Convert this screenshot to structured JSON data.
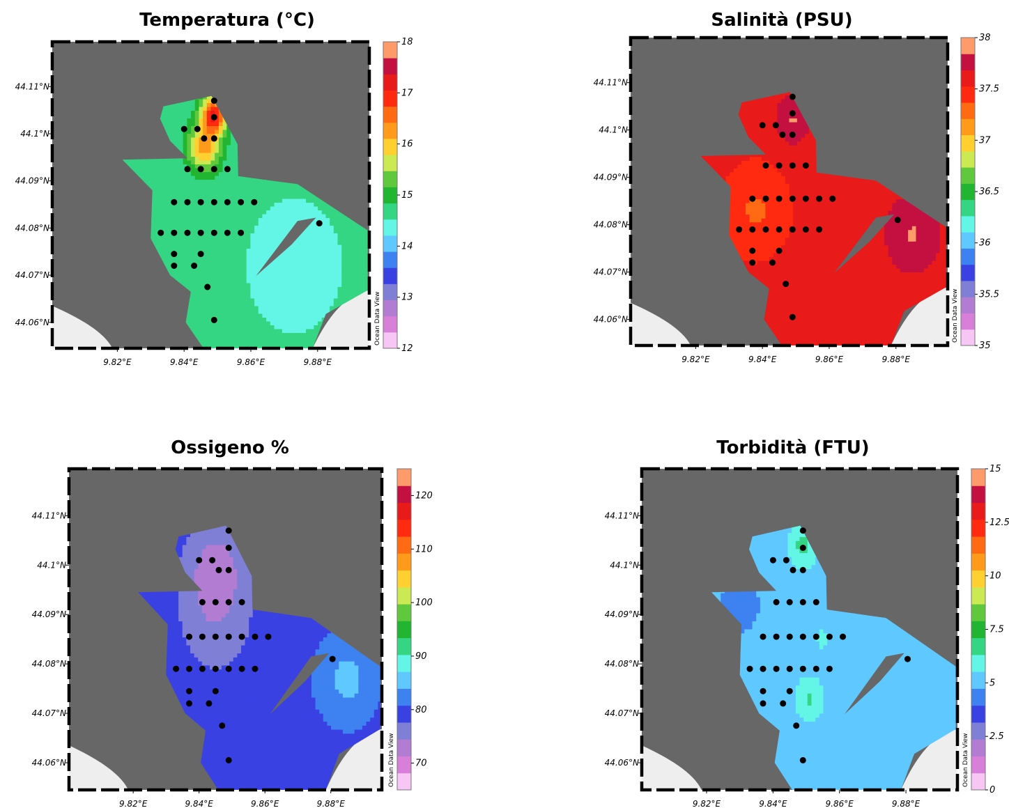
{
  "chart_data": [
    {
      "type": "heatmap",
      "title": "Temperatura (°C)",
      "colorbar": {
        "min": 12,
        "max": 18,
        "ticks": [
          "12",
          "13",
          "14",
          "15",
          "16",
          "17",
          "18"
        ]
      },
      "xticks": [
        "9.82°E",
        "9.84°E",
        "9.86°E",
        "9.88°E"
      ],
      "yticks": [
        "44.11°N",
        "44.1°N",
        "44.09°N",
        "44.08°N",
        "44.07°N",
        "44.06°N"
      ],
      "watermark": "Ocean Data View",
      "field": {
        "base": 14.6,
        "spots": [
          [
            9.849,
            44.104,
            17.0,
            0.004
          ],
          [
            9.846,
            44.097,
            16.2,
            0.005
          ],
          [
            9.873,
            44.072,
            14.3,
            0.012
          ]
        ]
      }
    },
    {
      "type": "heatmap",
      "title": "Salinità (PSU)",
      "colorbar": {
        "min": 35,
        "max": 38,
        "ticks": [
          "35",
          "35.5",
          "36",
          "36.5",
          "37",
          "37.5",
          "38"
        ]
      },
      "xticks": [
        "9.82°E",
        "9.84°E",
        "9.86°E",
        "9.88°E"
      ],
      "yticks": [
        "44.11°N",
        "44.1°N",
        "44.09°N",
        "44.08°N",
        "44.07°N",
        "44.06°N"
      ],
      "watermark": "Ocean Data View",
      "field": {
        "base": 37.6,
        "spots": [
          [
            9.849,
            44.102,
            37.85,
            0.005
          ],
          [
            9.885,
            44.078,
            37.85,
            0.008
          ],
          [
            9.838,
            44.083,
            37.35,
            0.01
          ]
        ]
      }
    },
    {
      "type": "heatmap",
      "title": "Ossigeno %",
      "colorbar": {
        "min": 65,
        "max": 125,
        "ticks": [
          "70",
          "80",
          "90",
          "100",
          "110",
          "120"
        ]
      },
      "xticks": [
        "9.82°E",
        "9.84°E",
        "9.86°E",
        "9.88°E"
      ],
      "yticks": [
        "44.11°N",
        "44.1°N",
        "44.09°N",
        "44.08°N",
        "44.07°N",
        "44.06°N"
      ],
      "watermark": "Ocean Data View",
      "field": {
        "base": 80.0,
        "spots": [
          [
            9.845,
            44.1,
            74.0,
            0.01
          ],
          [
            9.845,
            44.088,
            76.0,
            0.012
          ],
          [
            9.885,
            44.077,
            85.0,
            0.008
          ]
        ]
      }
    },
    {
      "type": "heatmap",
      "title": "Torbidità (FTU)",
      "colorbar": {
        "min": 0,
        "max": 15,
        "ticks": [
          "0",
          "2.5",
          "5",
          "7.5",
          "10",
          "12.5",
          "15"
        ]
      },
      "xticks": [
        "9.82°E",
        "9.84°E",
        "9.86°E",
        "9.88°E"
      ],
      "yticks": [
        "44.11°N",
        "44.1°N",
        "44.09°N",
        "44.08°N",
        "44.07°N",
        "44.06°N"
      ],
      "watermark": "Ocean Data View",
      "field": {
        "base": 5.2,
        "spots": [
          [
            9.849,
            44.104,
            6.6,
            0.004
          ],
          [
            9.851,
            44.073,
            6.4,
            0.004
          ],
          [
            9.855,
            44.085,
            5.9,
            0.002
          ],
          [
            9.83,
            44.092,
            4.3,
            0.007
          ]
        ]
      }
    }
  ],
  "stations": [
    [
      9.849,
      44.107
    ],
    [
      9.849,
      44.1035
    ],
    [
      9.84,
      44.101
    ],
    [
      9.844,
      44.101
    ],
    [
      9.846,
      44.099
    ],
    [
      9.849,
      44.099
    ],
    [
      9.841,
      44.0925
    ],
    [
      9.845,
      44.0925
    ],
    [
      9.849,
      44.0925
    ],
    [
      9.853,
      44.0925
    ],
    [
      9.837,
      44.0855
    ],
    [
      9.841,
      44.0855
    ],
    [
      9.845,
      44.0855
    ],
    [
      9.849,
      44.0855
    ],
    [
      9.853,
      44.0855
    ],
    [
      9.857,
      44.0855
    ],
    [
      9.861,
      44.0855
    ],
    [
      9.8805,
      44.081
    ],
    [
      9.833,
      44.079
    ],
    [
      9.837,
      44.079
    ],
    [
      9.841,
      44.079
    ],
    [
      9.845,
      44.079
    ],
    [
      9.849,
      44.079
    ],
    [
      9.853,
      44.079
    ],
    [
      9.857,
      44.079
    ],
    [
      9.837,
      44.0745
    ],
    [
      9.845,
      44.0745
    ],
    [
      9.837,
      44.072
    ],
    [
      9.843,
      44.072
    ],
    [
      9.847,
      44.0675
    ],
    [
      9.849,
      44.0605
    ]
  ]
}
